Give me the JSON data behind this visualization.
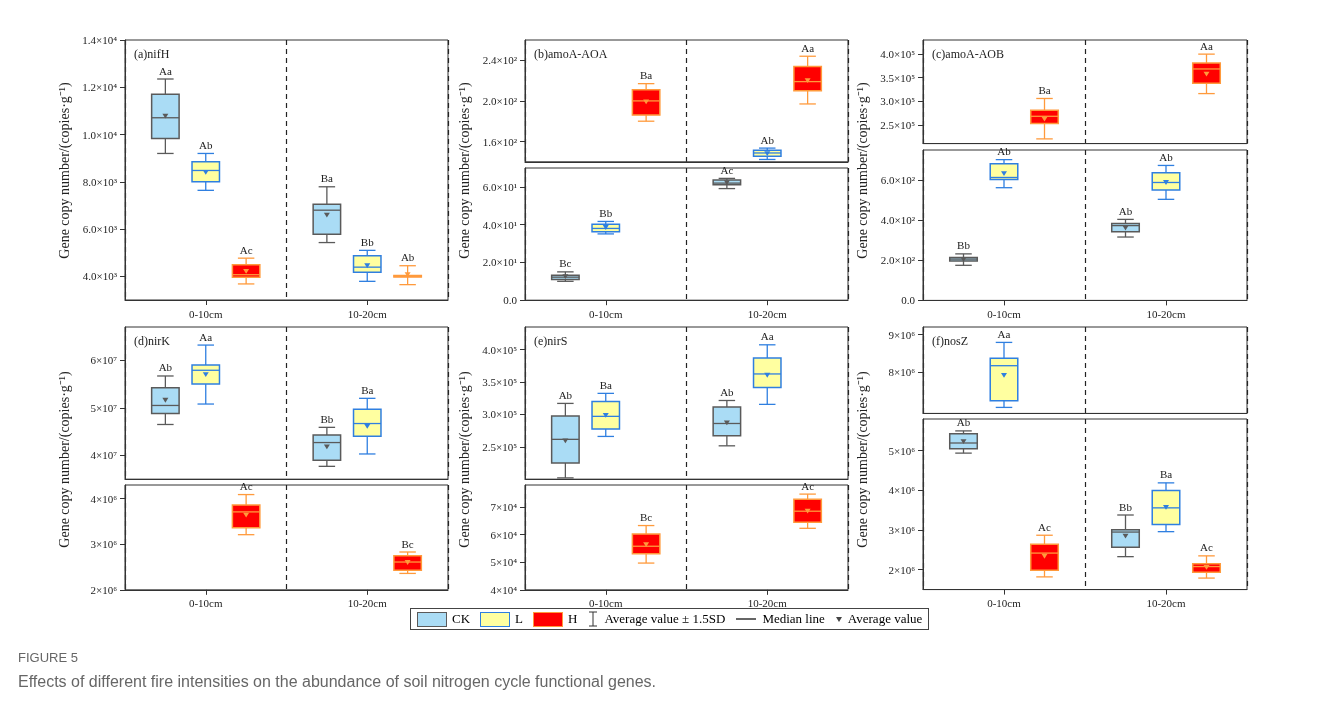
{
  "chart_data": [
    {
      "type": "box",
      "title": "(a)nifH",
      "ylabel": "Gene copy number/(copies·g⁻¹)",
      "categories": [
        "0-10cm",
        "10-20cm"
      ],
      "ylim": [
        3000,
        14000
      ],
      "yticks": [
        {
          "value": 4000,
          "label": "4.0×10³"
        },
        {
          "value": 6000,
          "label": "6.0×10³"
        },
        {
          "value": 8000,
          "label": "8.0×10³"
        },
        {
          "value": 10000,
          "label": "1.0×10⁴"
        },
        {
          "value": 12000,
          "label": "1.2×10⁴"
        },
        {
          "value": 14000,
          "label": "1.4×10⁴"
        }
      ],
      "grid": "x",
      "marker": "triangle",
      "series": [
        {
          "color": "#aadcf5",
          "value_labels": [
            "Aa",
            "Ba"
          ],
          "boxes": [
            {
              "low": 9200,
              "q1": 9830,
              "median": 10710,
              "q3": 11700,
              "high": 12350,
              "mean": 10780
            },
            {
              "low": 5430,
              "q1": 5780,
              "median": 6800,
              "q3": 7050,
              "high": 7790,
              "mean": 6590
            }
          ]
        },
        {
          "color": "#ffffa0",
          "value_labels": [
            "Ab",
            "Bb"
          ],
          "boxes": [
            {
              "low": 7640,
              "q1": 8000,
              "median": 8480,
              "q3": 8850,
              "high": 9200,
              "mean": 8400
            },
            {
              "low": 3790,
              "q1": 4170,
              "median": 4390,
              "q3": 4870,
              "high": 5100,
              "mean": 4450
            }
          ]
        },
        {
          "color": "#ff0000",
          "value_labels": [
            "Ac",
            "Ab"
          ],
          "boxes": [
            {
              "low": 3680,
              "q1": 3960,
              "median": 4070,
              "q3": 4490,
              "high": 4770,
              "mean": 4210
            },
            {
              "low": 3650,
              "q1": 3970,
              "median": 4000,
              "q3": 4040,
              "high": 4450,
              "mean": 4070
            }
          ]
        }
      ]
    },
    {
      "type": "box",
      "title": "(b)amoA-AOA",
      "categories": [
        null,
        null
      ],
      "ylim": [
        140,
        260
      ],
      "yticks": [
        {
          "value": 160,
          "label": "1.6×10²"
        },
        {
          "value": 200,
          "label": "2.0×10²"
        },
        {
          "value": 240,
          "label": "2.4×10²"
        }
      ],
      "grid": "x",
      "marker": "triangle",
      "tick_labels": "y",
      "series": [
        {
          "color": "#ffffa0",
          "value_labels": [
            null,
            "Ab"
          ],
          "boxes": [
            null,
            {
              "low": 142.3,
              "q1": 145.5,
              "median": 148.7,
              "q3": 151.3,
              "high": 153.5,
              "mean": 148
            }
          ]
        },
        {
          "color": "#ff0000",
          "value_labels": [
            "Ba",
            "Aa"
          ],
          "boxes": [
            {
              "low": 180,
              "q1": 186,
              "median": 200,
              "q3": 211,
              "high": 217,
              "mean": 199
            },
            {
              "low": 197,
              "q1": 210,
              "median": 219,
              "q3": 234,
              "high": 244,
              "mean": 220
            }
          ]
        }
      ]
    },
    {
      "type": "box",
      "ylabel": "Gene copy number/(copies·g⁻¹)",
      "categories": [
        "0-10cm",
        "10-20cm"
      ],
      "ylim": [
        0,
        70
      ],
      "yticks": [
        {
          "value": 0,
          "label": "0.0"
        },
        {
          "value": 20,
          "label": "2.0×10¹"
        },
        {
          "value": 40,
          "label": "4.0×10¹"
        },
        {
          "value": 60,
          "label": "6.0×10¹"
        }
      ],
      "grid": "x",
      "marker": "triangle",
      "series": [
        {
          "color": "#aadcf5",
          "value_labels": [
            "Bc",
            "Ac"
          ],
          "boxes": [
            {
              "low": 10,
              "q1": 11,
              "median": 12.2,
              "q3": 13.2,
              "high": 15,
              "mean": 12.5
            },
            {
              "low": 59.1,
              "q1": 61.1,
              "median": 62,
              "q3": 63.7,
              "high": 64.5,
              "mean": 62.2
            }
          ]
        },
        {
          "color": "#ffffa0",
          "value_labels": [
            "Bb",
            null
          ],
          "boxes": [
            {
              "low": 35.1,
              "q1": 36.3,
              "median": 38,
              "q3": 40.2,
              "high": 41.7,
              "mean": 38.5
            },
            null
          ]
        }
      ]
    },
    {
      "type": "box",
      "title": "(c)amoA-AOB",
      "categories": [
        null,
        null
      ],
      "ylim": [
        210000,
        430000
      ],
      "yticks": [
        {
          "value": 250000,
          "label": "2.5×10⁵"
        },
        {
          "value": 300000,
          "label": "3.0×10⁵"
        },
        {
          "value": 350000,
          "label": "3.5×10⁵"
        },
        {
          "value": 400000,
          "label": "4.0×10⁵"
        }
      ],
      "grid": "x",
      "marker": "triangle",
      "tick_labels": "y",
      "series": [
        {
          "color": "#ff0000",
          "value_labels": [
            "Ba",
            "Aa"
          ],
          "boxes": [
            {
              "low": 220000,
              "q1": 252800,
              "median": 268000,
              "q3": 280700,
              "high": 305800,
              "mean": 261900
            },
            {
              "low": 316200,
              "q1": 337900,
              "median": 368500,
              "q3": 381100,
              "high": 400000,
              "mean": 357400
            }
          ]
        }
      ]
    },
    {
      "type": "box",
      "ylabel": "Gene copy number/(copies·g⁻¹)",
      "categories": [
        "0-10cm",
        "10-20cm"
      ],
      "ylim": [
        0,
        750
      ],
      "yticks": [
        {
          "value": 0,
          "label": "0.0"
        },
        {
          "value": 200,
          "label": "2.0×10²"
        },
        {
          "value": 400,
          "label": "4.0×10²"
        },
        {
          "value": 600,
          "label": "6.0×10²"
        }
      ],
      "grid": "x",
      "marker": "triangle",
      "series": [
        {
          "color": "#aadcf5",
          "value_labels": [
            "Bb",
            "Ab"
          ],
          "boxes": [
            {
              "low": 175,
              "q1": 196,
              "median": 206,
              "q3": 214,
              "high": 232,
              "mean": 203
            },
            {
              "low": 316,
              "q1": 342,
              "median": 373,
              "q3": 384,
              "high": 404,
              "mean": 361
            }
          ]
        },
        {
          "color": "#ffffa0",
          "value_labels": [
            "Ab",
            "Ab"
          ],
          "boxes": [
            {
              "low": 562,
              "q1": 603,
              "median": 613,
              "q3": 682,
              "high": 702,
              "mean": 632
            },
            {
              "low": 504,
              "q1": 551,
              "median": 588,
              "q3": 637,
              "high": 673,
              "mean": 588
            }
          ]
        }
      ]
    },
    {
      "type": "box",
      "title": "(d)nirK",
      "categories": [
        null,
        null
      ],
      "ylim": [
        35000000,
        67000000
      ],
      "yticks": [
        {
          "value": 40000000,
          "label": "4×10⁷"
        },
        {
          "value": 50000000,
          "label": "5×10⁷"
        },
        {
          "value": 60000000,
          "label": "6×10⁷"
        }
      ],
      "grid": "x",
      "marker": "triangle",
      "tick_labels": "y",
      "series": [
        {
          "color": "#aadcf5",
          "value_labels": [
            "Ab",
            "Bb"
          ],
          "boxes": [
            {
              "low": 46500000,
              "q1": 48800000,
              "median": 50500000,
              "q3": 54200000,
              "high": 56700000,
              "mean": 51600000
            },
            {
              "low": 37700000,
              "q1": 39000000,
              "median": 42700000,
              "q3": 44300000,
              "high": 45900000,
              "mean": 41800000
            }
          ]
        },
        {
          "color": "#ffffa0",
          "value_labels": [
            "Aa",
            "Ba"
          ],
          "boxes": [
            {
              "low": 50800000,
              "q1": 55000000,
              "median": 57900000,
              "q3": 59000000,
              "high": 63200000,
              "mean": 57000000
            },
            {
              "low": 40300000,
              "q1": 44000000,
              "median": 46700000,
              "q3": 49700000,
              "high": 52000000,
              "mean": 46100000
            }
          ]
        }
      ]
    },
    {
      "type": "box",
      "ylabel": "Gene copy number/(copies·g⁻¹)",
      "categories": [
        "0-10cm",
        "10-20cm"
      ],
      "ylim": [
        2000000,
        4300000
      ],
      "yticks": [
        {
          "value": 2000000,
          "label": "2×10⁶"
        },
        {
          "value": 3000000,
          "label": "3×10⁶"
        },
        {
          "value": 4000000,
          "label": "4×10⁶"
        }
      ],
      "grid": "x",
      "marker": "triangle",
      "series": [
        {
          "color": "#ff0000",
          "value_labels": [
            "Ac",
            "Bc"
          ],
          "boxes": [
            {
              "low": 3210000,
              "q1": 3360000,
              "median": 3710000,
              "q3": 3860000,
              "high": 4090000,
              "mean": 3640000
            },
            {
              "low": 2360000,
              "q1": 2430000,
              "median": 2610000,
              "q3": 2750000,
              "high": 2830000,
              "mean": 2600000
            }
          ]
        }
      ]
    },
    {
      "type": "box",
      "title": "(e)nirS",
      "categories": [
        null,
        null
      ],
      "ylim": [
        200000,
        435000
      ],
      "yticks": [
        {
          "value": 250000,
          "label": "2.5×10⁵"
        },
        {
          "value": 300000,
          "label": "3.0×10⁵"
        },
        {
          "value": 350000,
          "label": "3.5×10⁵"
        },
        {
          "value": 400000,
          "label": "4.0×10⁵"
        }
      ],
      "grid": "x",
      "marker": "triangle",
      "tick_labels": "y",
      "series": [
        {
          "color": "#aadcf5",
          "value_labels": [
            "Ab",
            "Ab"
          ],
          "boxes": [
            {
              "low": 202000,
              "q1": 225000,
              "median": 261500,
              "q3": 297500,
              "high": 317000,
              "mean": 259000
            },
            {
              "low": 251500,
              "q1": 267000,
              "median": 286000,
              "q3": 311500,
              "high": 321500,
              "mean": 287000
            }
          ]
        },
        {
          "color": "#ffffa0",
          "value_labels": [
            "Ba",
            "Aa"
          ],
          "boxes": [
            {
              "low": 266000,
              "q1": 277500,
              "median": 297000,
              "q3": 320000,
              "high": 332500,
              "mean": 298500
            },
            {
              "low": 315500,
              "q1": 341500,
              "median": 362500,
              "q3": 387000,
              "high": 407500,
              "mean": 360500
            }
          ]
        }
      ]
    },
    {
      "type": "box",
      "ylabel": "Gene copy number/(copies·g⁻¹)",
      "categories": [
        "0-10cm",
        "10-20cm"
      ],
      "ylim": [
        40000,
        78000
      ],
      "yticks": [
        {
          "value": 40000,
          "label": "4×10⁴"
        },
        {
          "value": 50000,
          "label": "5×10⁴"
        },
        {
          "value": 60000,
          "label": "6×10⁴"
        },
        {
          "value": 70000,
          "label": "7×10⁴"
        }
      ],
      "grid": "x",
      "marker": "triangle",
      "series": [
        {
          "color": "#ff0000",
          "value_labels": [
            "Bc",
            "Ac"
          ],
          "boxes": [
            {
              "low": 49700,
              "q1": 53100,
              "median": 55800,
              "q3": 60200,
              "high": 63300,
              "mean": 56400
            },
            {
              "low": 62300,
              "q1": 64500,
              "median": 68500,
              "q3": 72800,
              "high": 74700,
              "mean": 68500
            }
          ]
        }
      ]
    },
    {
      "type": "box",
      "title": "(f)nosZ",
      "categories": [
        null,
        null
      ],
      "ylim": [
        6900000,
        9200000
      ],
      "yticks": [
        {
          "value": 8000000,
          "label": "8×10⁶"
        },
        {
          "value": 9000000,
          "label": "9×10⁶"
        }
      ],
      "grid": "x",
      "marker": "triangle",
      "tick_labels": "y",
      "series": [
        {
          "color": "#ffffa0",
          "value_labels": [
            "Aa",
            null
          ],
          "boxes": [
            {
              "low": 7060000,
              "q1": 7240000,
              "median": 8170000,
              "q3": 8370000,
              "high": 8790000,
              "mean": 7910000
            },
            null
          ]
        }
      ]
    },
    {
      "type": "box",
      "ylabel": "Gene copy number/(copies·g⁻¹)",
      "categories": [
        "0-10cm",
        "10-20cm"
      ],
      "ylim": [
        1500000,
        5800000
      ],
      "yticks": [
        {
          "value": 2000000,
          "label": "2×10⁶"
        },
        {
          "value": 3000000,
          "label": "3×10⁶"
        },
        {
          "value": 4000000,
          "label": "4×10⁶"
        },
        {
          "value": 5000000,
          "label": "5×10⁶"
        }
      ],
      "grid": "x",
      "marker": "triangle",
      "legend": "bottom",
      "series": [
        {
          "name": "CK",
          "color": "#aadcf5",
          "value_labels": [
            "Ab",
            "Bb"
          ],
          "boxes": [
            {
              "low": 4940000,
              "q1": 5050000,
              "median": 5195000,
              "q3": 5430000,
              "high": 5500000,
              "mean": 5230000
            },
            {
              "low": 2330000,
              "q1": 2570000,
              "median": 2950000,
              "q3": 3010000,
              "high": 3380000,
              "mean": 2850000
            }
          ]
        },
        {
          "name": "L",
          "color": "#ffffa0",
          "value_labels": [
            null,
            "Ba"
          ],
          "boxes": [
            null,
            {
              "low": 2960000,
              "q1": 3140000,
              "median": 3560000,
              "q3": 4000000,
              "high": 4190000,
              "mean": 3570000
            }
          ]
        },
        {
          "name": "H",
          "color": "#ff0000",
          "value_labels": [
            "Ac",
            "Ac"
          ],
          "boxes": [
            {
              "low": 1820000,
              "q1": 1990000,
              "median": 2420000,
              "q3": 2640000,
              "high": 2870000,
              "mean": 2340000
            },
            {
              "low": 1790000,
              "q1": 1940000,
              "median": 2080000,
              "q3": 2150000,
              "high": 2350000,
              "mean": 2060000
            }
          ]
        }
      ],
      "annotations": [
        "Average value ± 1.5SD",
        "Median line",
        "Average value",
        "FIGURE 5",
        "Effects of different fire intensities on the abundance of soil nitrogen cycle functional genes."
      ]
    }
  ]
}
